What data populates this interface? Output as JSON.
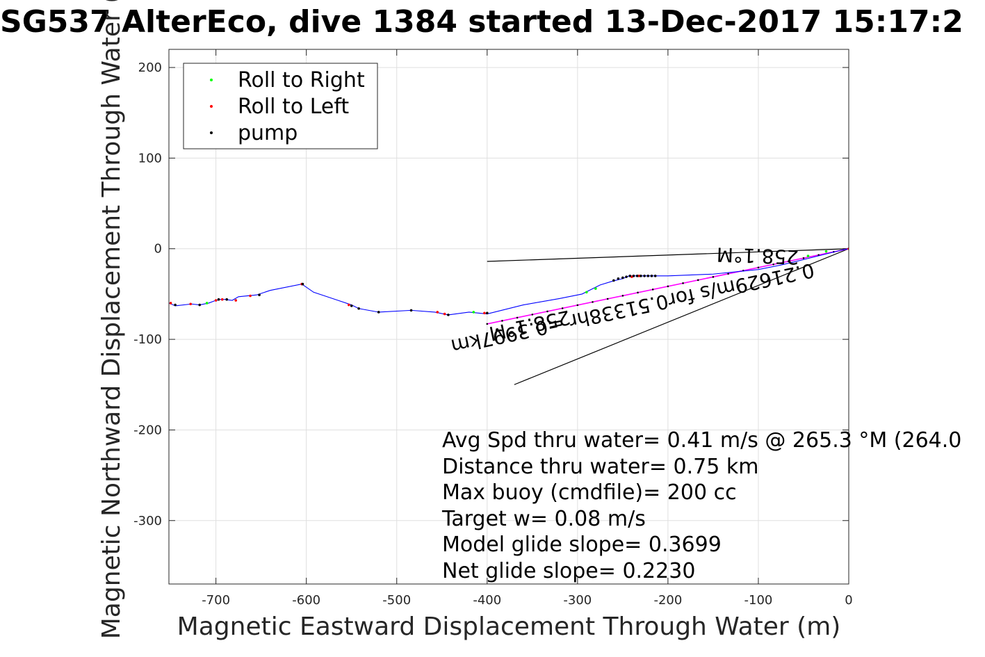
{
  "chart_data": {
    "type": "line",
    "title": "SG537 AlterEco, dive 1384 started 13-Dec-2017 15:17:2",
    "xlabel": "Magnetic Eastward Displacement Through Water (m)",
    "ylabel": "Magnetic Northward Displacement Through Water (",
    "xlim": [
      -752,
      0
    ],
    "ylim": [
      -370,
      220
    ],
    "xticks": [
      -700,
      -600,
      -500,
      -400,
      -300,
      -200,
      -100,
      0
    ],
    "xtick_labels": [
      "-700",
      "-600",
      "-500",
      "-400",
      "-300",
      "-200",
      "-100",
      "0"
    ],
    "yticks": [
      200,
      100,
      0,
      -100,
      -200,
      -300
    ],
    "ytick_labels": [
      "200",
      "100",
      "0",
      "-100",
      "-200",
      "-300"
    ],
    "grid": true,
    "legend": {
      "placement": "top-left",
      "entries": [
        {
          "label": "Roll to Right",
          "color": "#00ff00"
        },
        {
          "label": "Roll to Left",
          "color": "#ff0000"
        },
        {
          "label": "pump",
          "color": "#000000"
        }
      ]
    },
    "track": {
      "color": "#0000ff",
      "x": [
        -752,
        -745,
        -727,
        -718,
        -708,
        -700,
        -695,
        -690,
        -682,
        -675,
        -655,
        -640,
        -605,
        -592,
        -565,
        -550,
        -542,
        -520,
        -484,
        -458,
        -443,
        -420,
        -400,
        -360,
        -320,
        -295,
        -285,
        -275,
        -262,
        -250,
        -243,
        -235,
        -225,
        -212,
        -200,
        -150,
        -100,
        -75,
        -50,
        -30,
        -10,
        0
      ],
      "y": [
        -60,
        -63,
        -61,
        -62,
        -60,
        -57,
        -56,
        -56,
        -57,
        -53,
        -51,
        -46,
        -39,
        -48,
        -57,
        -62,
        -66,
        -70,
        -68,
        -70,
        -73,
        -70,
        -72,
        -62,
        -55,
        -50,
        -45,
        -40,
        -36,
        -33,
        -30,
        -30,
        -30,
        -30,
        -30,
        -28,
        -23,
        -18,
        -12,
        -7,
        -2,
        0
      ]
    },
    "roll_right": {
      "color": "#00ff00",
      "x": [
        -710,
        -415,
        -290,
        -280,
        -45,
        -25
      ],
      "y": [
        -60,
        -70,
        -48,
        -44,
        -8,
        -3
      ]
    },
    "roll_left": {
      "color": "#ff0000",
      "x": [
        -750,
        -728,
        -700,
        -693,
        -678,
        -662,
        -605,
        -553,
        -455,
        -447,
        -403,
        -240,
        -232,
        0
      ],
      "y": [
        -60,
        -61,
        -57,
        -56,
        -57,
        -52,
        -39,
        -62,
        -70,
        -72,
        -71,
        -31,
        -30,
        0
      ]
    },
    "pump": {
      "color": "#000000",
      "x": [
        -745,
        -718,
        -697,
        -688,
        -652,
        -604,
        -550,
        -542,
        -520,
        -484,
        -443,
        -400,
        -260,
        -255,
        -250,
        -246,
        -242,
        -238,
        -234,
        -230,
        -226,
        -222,
        -218,
        -214
      ],
      "y": [
        -62,
        -62,
        -56,
        -56,
        -51,
        -39,
        -63,
        -66,
        -70,
        -68,
        -73,
        -71,
        -35,
        -33,
        -32,
        -31,
        -30,
        -30,
        -30,
        -30,
        -30,
        -30,
        -30,
        -30
      ]
    },
    "magenta_track": {
      "color": "#ff00ff",
      "x": [
        -400,
        0
      ],
      "y": [
        -83,
        0
      ]
    },
    "black_lines": [
      {
        "x": [
          -400,
          0
        ],
        "y": [
          -14,
          0
        ]
      },
      {
        "x": [
          -370,
          0
        ],
        "y": [
          -150,
          0
        ]
      }
    ],
    "rotated_labels": [
      {
        "text": "258.1°M",
        "x": -55,
        "y": -2,
        "angle": 182
      },
      {
        "text": "0.21629m/s for0.51338hr =0.3997km",
        "x": -40,
        "y": -16,
        "angle": 168
      },
      {
        "text": "258.1°M",
        "x": -310,
        "y": -68,
        "angle": 168
      }
    ],
    "annotations": [
      "Avg Spd thru water=  0.41 m/s @ 265.3 °M (264.0",
      "Distance thru water=  0.75 km",
      "Max buoy (cmdfile)= 200 cc",
      "Target w= 0.08 m/s",
      "Model glide slope= 0.3699",
      "Net glide slope= 0.2230"
    ]
  }
}
